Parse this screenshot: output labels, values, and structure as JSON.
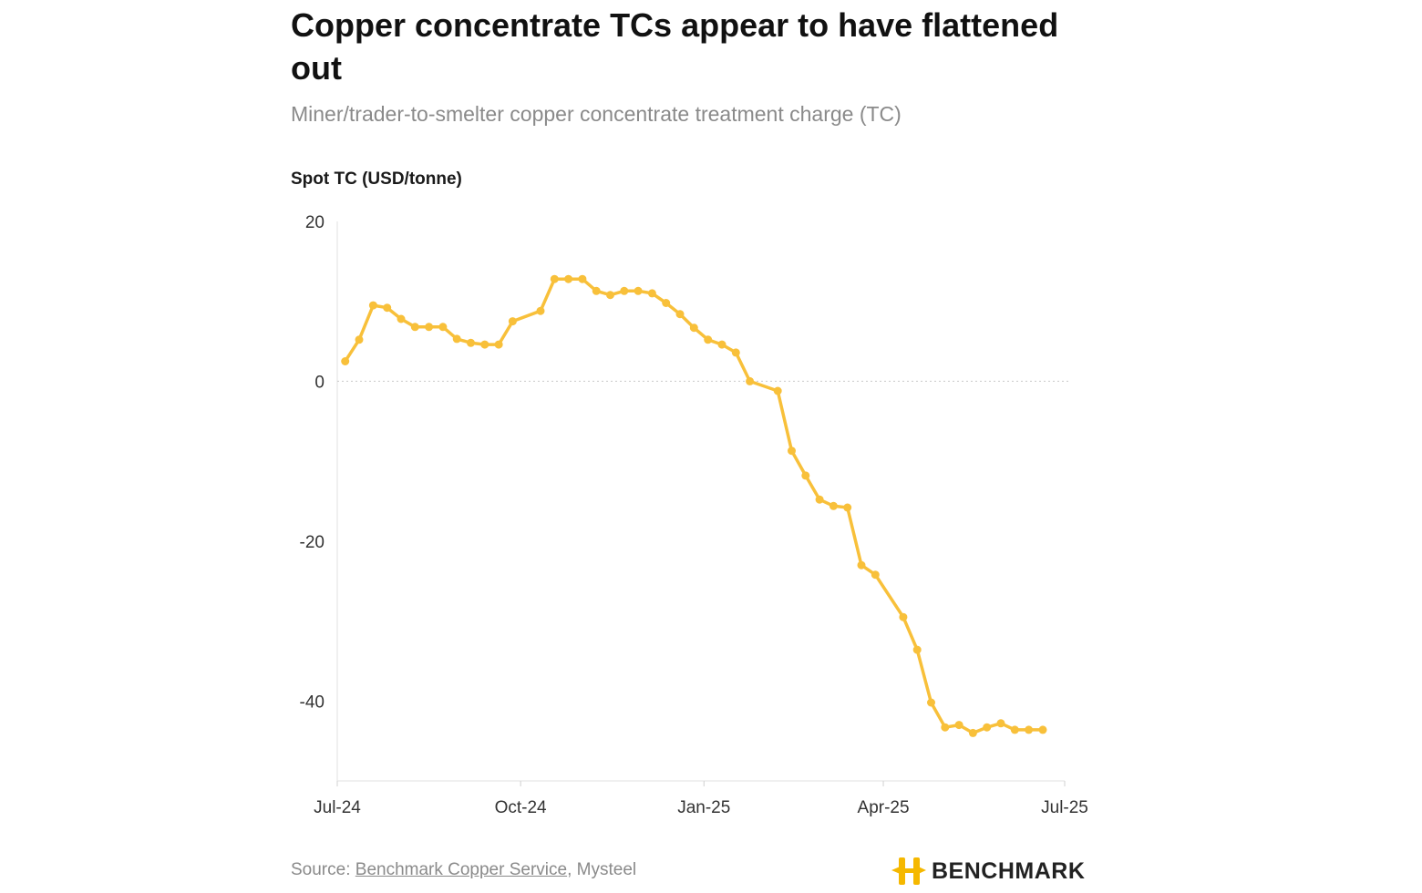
{
  "header": {
    "title": "Copper concentrate TCs appear to have flattened out",
    "subtitle": "Miner/trader-to-smelter copper concentrate treatment charge (TC)"
  },
  "footer": {
    "source_prefix": "Source: ",
    "source_link": "Benchmark Copper Service",
    "source_separator": ", ",
    "source_rest": "Mysteel",
    "logo_text": "BENCHMARK",
    "logo_color": "#f5b800"
  },
  "chart_data": {
    "type": "line",
    "ylabel": "Spot TC (USD/tonne)",
    "ylim": [
      -50,
      20
    ],
    "yticks": [
      "20",
      "0",
      "-20",
      "-40"
    ],
    "ytick_values": [
      20,
      0,
      -20,
      -40
    ],
    "xticks": [
      "Jul-24",
      "Oct-24",
      "Jan-25",
      "Apr-25",
      "Jul-25"
    ],
    "xtick_dates": [
      "2024-07-01",
      "2024-10-01",
      "2025-01-01",
      "2025-04-01",
      "2025-07-01"
    ],
    "xlim": [
      "2024-07-01",
      "2025-07-01"
    ],
    "grid": false,
    "zero_line": true,
    "color": "#f8c03a",
    "series": [
      {
        "x": [
          "2024-07-05",
          "2024-07-12",
          "2024-07-19",
          "2024-07-26",
          "2024-08-02",
          "2024-08-09",
          "2024-08-16",
          "2024-08-23",
          "2024-08-30",
          "2024-09-06",
          "2024-09-13",
          "2024-09-20",
          "2024-09-27",
          "2024-10-11",
          "2024-10-18",
          "2024-10-25",
          "2024-11-01",
          "2024-11-08",
          "2024-11-15",
          "2024-11-22",
          "2024-11-29",
          "2024-12-06",
          "2024-12-13",
          "2024-12-20",
          "2024-12-27",
          "2025-01-03",
          "2025-01-10",
          "2025-01-17",
          "2025-01-24",
          "2025-02-07",
          "2025-02-14",
          "2025-02-21",
          "2025-02-28",
          "2025-03-07",
          "2025-03-14",
          "2025-03-21",
          "2025-03-28",
          "2025-04-11",
          "2025-04-18",
          "2025-04-25",
          "2025-05-02",
          "2025-05-09",
          "2025-05-16",
          "2025-05-23",
          "2025-05-30",
          "2025-06-06",
          "2025-06-13",
          "2025-06-20"
        ],
        "y": [
          2.5,
          5.2,
          9.5,
          9.2,
          7.8,
          6.8,
          6.8,
          6.8,
          5.3,
          4.8,
          4.6,
          4.6,
          7.5,
          8.8,
          12.8,
          12.8,
          12.8,
          11.3,
          10.8,
          11.3,
          11.3,
          11.0,
          9.8,
          8.4,
          6.7,
          5.2,
          4.6,
          3.6,
          0.0,
          -1.2,
          -8.7,
          -11.8,
          -14.8,
          -15.6,
          -15.8,
          -23.0,
          -24.2,
          -29.5,
          -33.6,
          -40.2,
          -43.3,
          -43.0,
          -44.0,
          -43.3,
          -42.8,
          -43.6,
          -43.6,
          -43.6
        ]
      }
    ]
  }
}
